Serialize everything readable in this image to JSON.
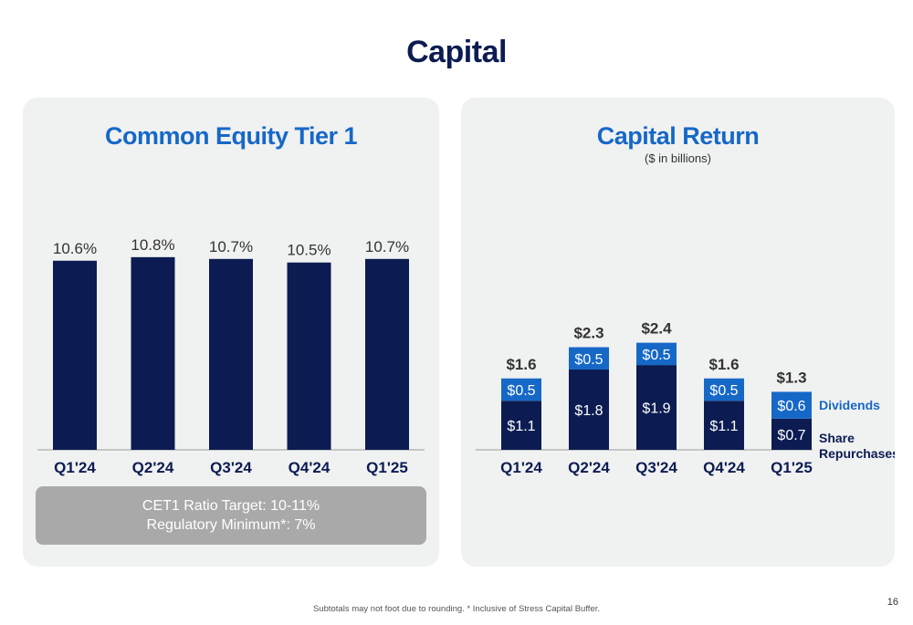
{
  "page": {
    "title": "Capital",
    "footnote": "Subtotals may not foot due to rounding. * Inclusive of Stress Capital Buffer.",
    "page_number": "16"
  },
  "cet1": {
    "title": "Common Equity Tier 1",
    "target_line1": "CET1 Ratio Target: 10-11%",
    "target_line2": "Regulatory Minimum*: 7%"
  },
  "capital_return": {
    "title": "Capital Return",
    "subtitle": "($ in billions)"
  },
  "colors": {
    "navy": "#0c1c52",
    "blue": "#1668c7",
    "panel_bg": "#f0f1f1",
    "target_box": "#a9a9a9"
  },
  "chart_data": [
    {
      "type": "bar",
      "title": "Common Equity Tier 1",
      "categories": [
        "Q1'24",
        "Q2'24",
        "Q3'24",
        "Q4'24",
        "Q1'25"
      ],
      "values": [
        10.6,
        10.8,
        10.7,
        10.5,
        10.7
      ],
      "value_labels": [
        "10.6%",
        "10.8%",
        "10.7%",
        "10.5%",
        "10.7%"
      ],
      "ylim": [
        0,
        11
      ],
      "grid": false,
      "legend": "none"
    },
    {
      "type": "bar",
      "stacked": true,
      "title": "Capital Return",
      "subtitle": "($ in billions)",
      "categories": [
        "Q1'24",
        "Q2'24",
        "Q3'24",
        "Q4'24",
        "Q1'25"
      ],
      "series": [
        {
          "name": "Share Repurchases",
          "values": [
            1.1,
            1.8,
            1.9,
            1.1,
            0.7
          ],
          "labels": [
            "$1.1",
            "$1.8",
            "$1.9",
            "$1.1",
            "$0.7"
          ],
          "color": "#0c1c52"
        },
        {
          "name": "Dividends",
          "values": [
            0.5,
            0.5,
            0.5,
            0.5,
            0.6
          ],
          "labels": [
            "$0.5",
            "$0.5",
            "$0.5",
            "$0.5",
            "$0.6"
          ],
          "color": "#1668c7"
        }
      ],
      "totals": [
        1.6,
        2.3,
        2.4,
        1.6,
        1.3
      ],
      "total_labels": [
        "$1.6",
        "$2.3",
        "$2.4",
        "$1.6",
        "$1.3"
      ],
      "ylim": [
        0,
        2.4
      ],
      "grid": false,
      "legend": "right"
    }
  ]
}
